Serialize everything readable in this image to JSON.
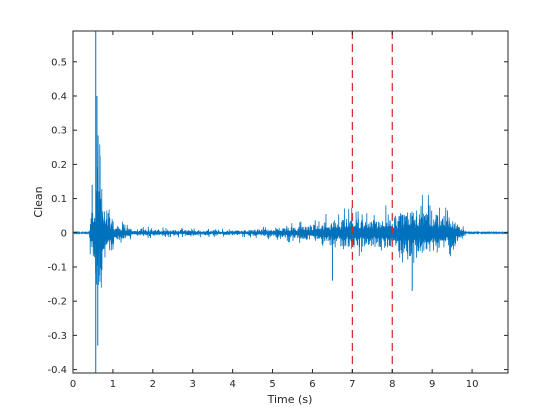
{
  "chart_data": {
    "type": "line",
    "title": "",
    "xlabel": "Time (s)",
    "ylabel": "Clean",
    "xlim": [
      0,
      10.9
    ],
    "ylim": [
      -0.41,
      0.59
    ],
    "xticks": [
      0,
      1,
      2,
      3,
      4,
      5,
      6,
      7,
      8,
      9,
      10
    ],
    "yticks": [
      -0.4,
      -0.3,
      -0.2,
      -0.1,
      0,
      0.1,
      0.2,
      0.3,
      0.4,
      0.5
    ],
    "grid": false,
    "series": [
      {
        "color": "#0072BD",
        "style": "solid",
        "envelope": [
          {
            "x": 0.0,
            "amp": 0.003
          },
          {
            "x": 0.4,
            "amp": 0.004
          },
          {
            "x": 0.45,
            "amp": 0.1
          },
          {
            "x": 0.55,
            "amp": 0.15
          },
          {
            "x": 0.6,
            "amp": 0.4
          },
          {
            "x": 0.65,
            "amp": 0.32
          },
          {
            "x": 0.75,
            "amp": 0.2
          },
          {
            "x": 0.9,
            "amp": 0.1
          },
          {
            "x": 1.1,
            "amp": 0.04
          },
          {
            "x": 1.5,
            "amp": 0.02
          },
          {
            "x": 2.5,
            "amp": 0.015
          },
          {
            "x": 4.0,
            "amp": 0.012
          },
          {
            "x": 5.0,
            "amp": 0.02
          },
          {
            "x": 5.5,
            "amp": 0.03
          },
          {
            "x": 6.0,
            "amp": 0.04
          },
          {
            "x": 6.5,
            "amp": 0.07
          },
          {
            "x": 7.0,
            "amp": 0.08
          },
          {
            "x": 7.5,
            "amp": 0.07
          },
          {
            "x": 8.0,
            "amp": 0.09
          },
          {
            "x": 8.5,
            "amp": 0.12
          },
          {
            "x": 9.0,
            "amp": 0.11
          },
          {
            "x": 9.5,
            "amp": 0.08
          },
          {
            "x": 9.7,
            "amp": 0.03
          },
          {
            "x": 9.9,
            "amp": 0.004
          },
          {
            "x": 10.9,
            "amp": 0.003
          }
        ],
        "peaks": [
          {
            "x": 0.57,
            "y": 0.59
          },
          {
            "x": 0.57,
            "y": -0.41
          },
          {
            "x": 0.6,
            "y": 0.4
          },
          {
            "x": 0.62,
            "y": -0.33
          },
          {
            "x": 0.48,
            "y": 0.14
          },
          {
            "x": 8.5,
            "y": -0.17
          },
          {
            "x": 6.5,
            "y": -0.14
          }
        ]
      }
    ],
    "vlines": [
      {
        "x": 7,
        "color": "#D62728",
        "style": "dashed"
      },
      {
        "x": 8,
        "color": "#D62728",
        "style": "dashed"
      }
    ]
  }
}
